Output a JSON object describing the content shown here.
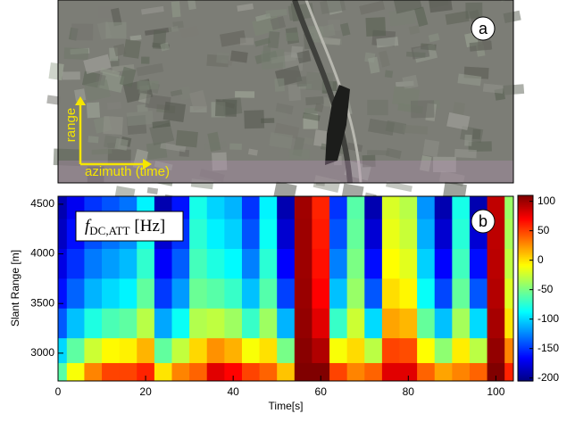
{
  "chart_data": [
    {
      "type": "image",
      "panel_label": "a",
      "range_label": "range",
      "azimuth_label": "azimuth (time)"
    },
    {
      "type": "heatmap",
      "panel_label": "b",
      "xlabel": "Time[s]",
      "ylabel": "Slant Range [m]",
      "colorbar_label": {
        "symbol": "f",
        "subscript": "DC,ATT",
        "unit": "[Hz]"
      },
      "colormap": "jet",
      "xlim": [
        0,
        104
      ],
      "xticks": [
        0,
        20,
        40,
        60,
        80,
        100
      ],
      "ylim": [
        2720,
        4580
      ],
      "yticks": [
        3000,
        3500,
        4000,
        4500
      ],
      "zlim": [
        -205,
        110
      ],
      "zticks": [
        100,
        50,
        0,
        -50,
        -100,
        -150,
        -200
      ],
      "x": [
        0,
        4,
        8,
        12,
        16,
        20,
        24,
        28,
        32,
        36,
        40,
        44,
        48,
        52,
        56,
        60,
        64,
        68,
        72,
        76,
        80,
        84,
        88,
        92,
        96,
        100,
        104
      ],
      "y": [
        4500,
        4200,
        3900,
        3600,
        3300,
        3000,
        2800
      ],
      "z": [
        [
          -190,
          -170,
          -150,
          -140,
          -130,
          -90,
          -190,
          -160,
          -80,
          -100,
          -110,
          -150,
          -90,
          -190,
          100,
          60,
          -150,
          -60,
          -190,
          -20,
          -30,
          -120,
          -190,
          -80,
          -190,
          90,
          -40
        ],
        [
          -184,
          -162,
          -141,
          -130,
          -121,
          -82,
          -180,
          -150,
          -74,
          -91,
          -101,
          -140,
          -84,
          -180,
          101,
          63,
          -140,
          -56,
          -179,
          -15,
          -25,
          -112,
          -180,
          -75,
          -179,
          91,
          -35
        ],
        [
          -174,
          -151,
          -128,
          -117,
          -108,
          -72,
          -167,
          -137,
          -66,
          -78,
          -88,
          -126,
          -74,
          -166,
          101,
          66,
          -126,
          -49,
          -162,
          -8,
          -17,
          -101,
          -165,
          -67,
          -162,
          92,
          -28
        ],
        [
          -161,
          -135,
          -110,
          -98,
          -90,
          -57,
          -148,
          -118,
          -54,
          -60,
          -70,
          -106,
          -61,
          -146,
          102,
          71,
          -106,
          -40,
          -139,
          2,
          -6,
          -85,
          -144,
          -56,
          -139,
          94,
          -18
        ],
        [
          -138,
          -106,
          -78,
          -64,
          -58,
          -30,
          -114,
          -84,
          -32,
          -28,
          -38,
          -70,
          -38,
          -110,
          104,
          80,
          -70,
          -24,
          -98,
          20,
          14,
          -56,
          -106,
          -36,
          -98,
          98,
          0
        ],
        [
          -99,
          -58,
          -24,
          -7,
          -4,
          15,
          -57,
          -27,
          4,
          26,
          16,
          -10,
          1,
          -50,
          107,
          95,
          -10,
          3,
          -29,
          50,
          47,
          -8,
          -43,
          -3,
          -29,
          104,
          30
        ],
        [
          -60,
          -10,
          30,
          50,
          50,
          60,
          0,
          30,
          40,
          80,
          70,
          50,
          40,
          10,
          110,
          110,
          50,
          30,
          40,
          80,
          80,
          40,
          20,
          30,
          40,
          110,
          60
        ]
      ]
    }
  ]
}
